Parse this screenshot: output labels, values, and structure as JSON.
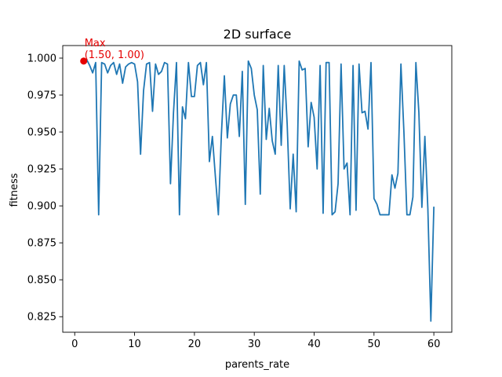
{
  "chart_data": {
    "type": "line",
    "title": "2D surface",
    "xlabel": "parents_rate",
    "ylabel": "fitness",
    "xlim": [
      -2.0,
      63.0
    ],
    "ylim": [
      0.8145,
      1.0085
    ],
    "xticks": [
      0,
      10,
      20,
      30,
      40,
      50,
      60
    ],
    "yticks": [
      0.825,
      0.85,
      0.875,
      0.9,
      0.925,
      0.95,
      0.975,
      1.0
    ],
    "xtick_labels": [
      "0",
      "10",
      "20",
      "30",
      "40",
      "50",
      "60"
    ],
    "ytick_labels": [
      "0.825",
      "0.850",
      "0.875",
      "0.900",
      "0.925",
      "0.950",
      "0.975",
      "1.000"
    ],
    "line_color": "#1f77b4",
    "grid": false,
    "series": [
      {
        "x": [
          1.5,
          2.0,
          2.5,
          3.0,
          3.5,
          4.0,
          4.5,
          5.0,
          5.5,
          6.0,
          6.5,
          7.0,
          7.5,
          8.0,
          8.5,
          9.0,
          9.5,
          10.0,
          10.5,
          11.0,
          11.5,
          12.0,
          12.5,
          13.0,
          13.5,
          14.0,
          14.5,
          15.0,
          15.5,
          16.0,
          16.5,
          17.0,
          17.5,
          18.0,
          18.5,
          19.0,
          19.5,
          20.0,
          20.5,
          21.0,
          21.5,
          22.0,
          22.5,
          23.0,
          23.5,
          24.0,
          24.5,
          25.0,
          25.5,
          26.0,
          26.5,
          27.0,
          27.5,
          28.0,
          28.5,
          29.0,
          29.5,
          30.0,
          30.5,
          31.0,
          31.5,
          32.0,
          32.5,
          33.0,
          33.5,
          34.0,
          34.5,
          35.0,
          35.5,
          36.0,
          36.5,
          37.0,
          37.5,
          38.0,
          38.5,
          39.0,
          39.5,
          40.0,
          40.5,
          41.0,
          41.5,
          42.0,
          42.5,
          43.0,
          43.5,
          44.0,
          44.5,
          45.0,
          45.5,
          46.0,
          46.5,
          47.0,
          47.5,
          48.0,
          48.5,
          49.0,
          49.5,
          50.0,
          50.5,
          51.0,
          51.5,
          52.0,
          52.5,
          53.0,
          53.5,
          54.0,
          54.5,
          55.0,
          55.5,
          56.0,
          56.5,
          57.0,
          57.5,
          58.0,
          58.5,
          59.0,
          59.5,
          60.0
        ],
        "y": [
          0.998,
          0.999,
          0.995,
          0.99,
          0.997,
          0.894,
          0.997,
          0.996,
          0.99,
          0.995,
          0.997,
          0.989,
          0.996,
          0.983,
          0.994,
          0.996,
          0.997,
          0.996,
          0.984,
          0.935,
          0.978,
          0.996,
          0.997,
          0.964,
          0.996,
          0.989,
          0.991,
          0.997,
          0.996,
          0.915,
          0.963,
          0.997,
          0.894,
          0.967,
          0.959,
          0.997,
          0.974,
          0.974,
          0.995,
          0.997,
          0.982,
          0.997,
          0.93,
          0.947,
          0.92,
          0.894,
          0.948,
          0.988,
          0.946,
          0.969,
          0.975,
          0.975,
          0.947,
          0.991,
          0.901,
          0.998,
          0.993,
          0.975,
          0.965,
          0.908,
          0.995,
          0.945,
          0.966,
          0.944,
          0.935,
          0.995,
          0.941,
          0.995,
          0.955,
          0.898,
          0.935,
          0.896,
          0.998,
          0.992,
          0.993,
          0.94,
          0.97,
          0.96,
          0.925,
          0.995,
          0.895,
          0.997,
          0.997,
          0.894,
          0.896,
          0.915,
          0.996,
          0.925,
          0.929,
          0.894,
          0.995,
          0.897,
          0.996,
          0.963,
          0.964,
          0.952,
          0.997,
          0.905,
          0.901,
          0.894,
          0.894,
          0.894,
          0.894,
          0.921,
          0.912,
          0.922,
          0.996,
          0.95,
          0.894,
          0.894,
          0.906,
          0.997,
          0.963,
          0.899,
          0.947,
          0.898,
          0.822,
          0.899
        ]
      }
    ],
    "annotation": {
      "label": "Max\n(1.50, 1.00)",
      "x": 1.5,
      "y": 0.998,
      "color": "#e50000"
    }
  }
}
